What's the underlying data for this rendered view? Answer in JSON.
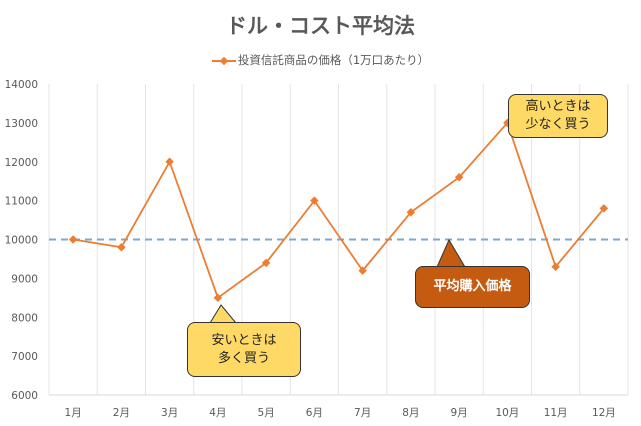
{
  "chart_data": {
    "type": "line",
    "title": "ドル・コスト平均法",
    "categories": [
      "1月",
      "2月",
      "3月",
      "4月",
      "5月",
      "6月",
      "7月",
      "8月",
      "9月",
      "10月",
      "11月",
      "12月"
    ],
    "series": [
      {
        "name": "投資信託商品の価格（1万口あたり）",
        "color": "#ed7d31",
        "values": [
          10000,
          9800,
          12000,
          8500,
          9400,
          11000,
          9200,
          10700,
          11600,
          13000,
          9300,
          10800
        ]
      }
    ],
    "reference_line": {
      "value": 10000,
      "color": "#7fa7cf",
      "style": "dashed"
    },
    "ylim": [
      6000,
      14000
    ],
    "yticks": [
      "6000",
      "7000",
      "8000",
      "9000",
      "10000",
      "11000",
      "12000",
      "13000",
      "14000"
    ],
    "xlabel": "",
    "ylabel": "",
    "grid": "vertical",
    "legend_position": "top",
    "annotations": [
      {
        "id": "high",
        "line1": "高いときは",
        "line2": "少なく買う",
        "color": "#ffd966"
      },
      {
        "id": "low",
        "line1": "安いときは",
        "line2": "多く買う",
        "color": "#ffd966"
      },
      {
        "id": "avg",
        "line1": "平均購入価格",
        "color": "#c55a11"
      }
    ]
  }
}
